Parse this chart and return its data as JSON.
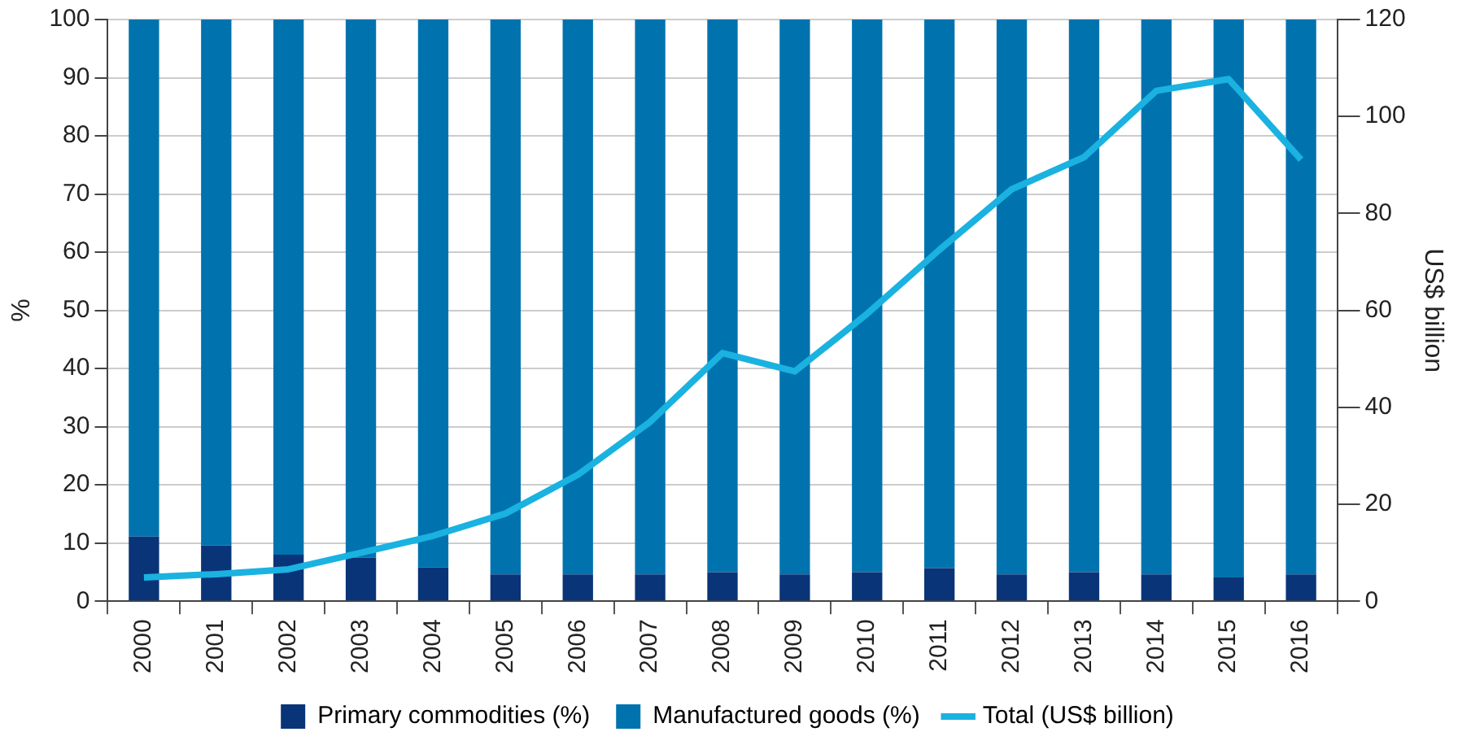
{
  "chart_data": {
    "type": "bar",
    "stacked": true,
    "categories": [
      "2000",
      "2001",
      "2002",
      "2003",
      "2004",
      "2005",
      "2006",
      "2007",
      "2008",
      "2009",
      "2010",
      "2011",
      "2012",
      "2013",
      "2014",
      "2015",
      "2016"
    ],
    "series": [
      {
        "name": "Primary commodities (%)",
        "color": "#0a3478",
        "values": [
          11.1,
          9.6,
          8.0,
          7.5,
          5.8,
          4.6,
          4.6,
          4.6,
          5.0,
          4.6,
          5.0,
          5.7,
          4.6,
          5.0,
          4.6,
          4.1,
          4.6
        ]
      },
      {
        "name": "Manufactured goods (%)",
        "color": "#0073ae",
        "values": [
          88.9,
          90.4,
          92.0,
          92.5,
          94.2,
          95.4,
          95.4,
          95.4,
          95.0,
          95.4,
          95.0,
          94.3,
          95.4,
          95.0,
          95.4,
          95.9,
          95.4
        ]
      },
      {
        "name": "Total (US$ billion)",
        "type": "line",
        "axis": "y2",
        "color": "#1ab2e0",
        "values": [
          4.9,
          5.6,
          6.6,
          10,
          13.5,
          18.1,
          26.1,
          37,
          51.2,
          47.4,
          59.3,
          72.5,
          85,
          91.6,
          105.3,
          107.7,
          91.1
        ]
      }
    ],
    "ylabel": "%",
    "y2label": "US$ billion",
    "ylim": [
      0,
      100
    ],
    "yticks": [
      0,
      10,
      20,
      30,
      40,
      50,
      60,
      70,
      80,
      90,
      100
    ],
    "y2lim": [
      0,
      120
    ],
    "y2ticks": [
      0,
      20,
      40,
      60,
      80,
      100,
      120
    ],
    "grid": "y",
    "legend": "bottom",
    "marker": "none"
  }
}
